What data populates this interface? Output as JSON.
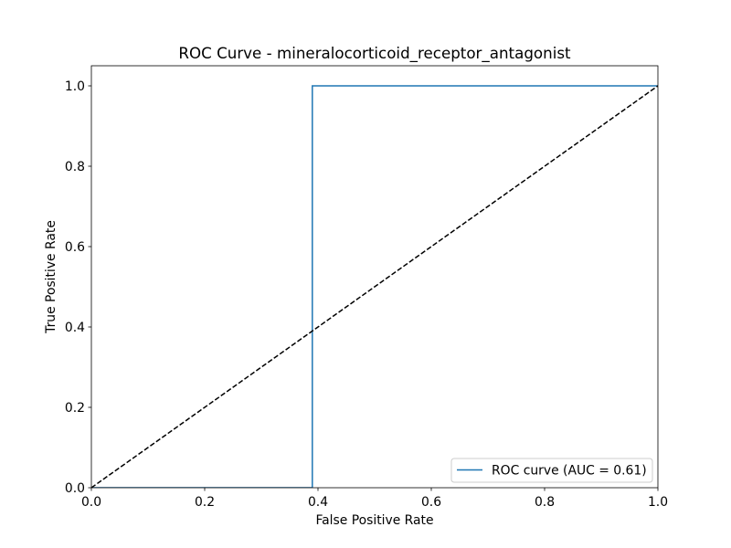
{
  "chart_data": {
    "type": "line",
    "title": "ROC Curve - mineralocorticoid_receptor_antagonist",
    "xlabel": "False Positive Rate",
    "ylabel": "True Positive Rate",
    "xlim": [
      0.0,
      1.0
    ],
    "ylim": [
      0.0,
      1.05
    ],
    "x_ticks": [
      "0.0",
      "0.2",
      "0.4",
      "0.6",
      "0.8",
      "1.0"
    ],
    "y_ticks": [
      "0.0",
      "0.2",
      "0.4",
      "0.6",
      "0.8",
      "1.0"
    ],
    "grid": false,
    "legend_position": "lower right",
    "series": [
      {
        "name": "ROC curve (AUC = 0.61)",
        "color": "#1f77b4",
        "style": "solid",
        "x": [
          0.0,
          0.39,
          0.39,
          1.0
        ],
        "y": [
          0.0,
          0.0,
          1.0,
          1.0
        ]
      },
      {
        "color": "#000000",
        "style": "dashed",
        "x": [
          0.0,
          1.0
        ],
        "y": [
          0.0,
          1.0
        ]
      }
    ]
  }
}
